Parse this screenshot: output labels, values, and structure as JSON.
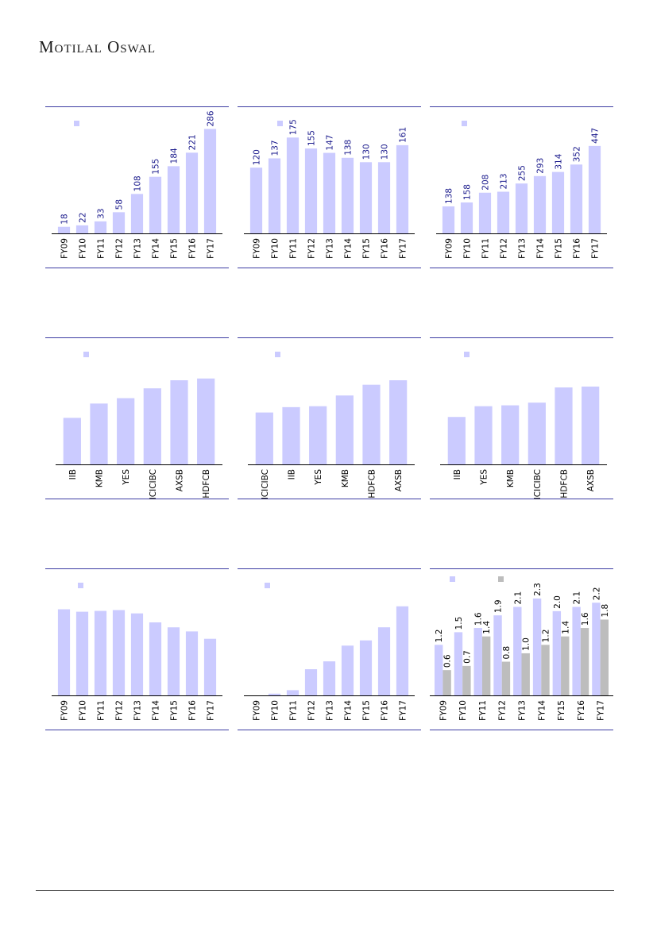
{
  "header": {
    "logo_text": "Motilal Oswal"
  },
  "colors": {
    "rule": "#3d3da3",
    "bar": "#cbcbff",
    "bar2": "#bdbdbd",
    "value_text": "#1a1a8c",
    "axis": "#000000"
  },
  "chart_data": [
    {
      "type": "bar",
      "categories": [
        "FY09",
        "FY10",
        "FY11",
        "FY12",
        "FY13",
        "FY14",
        "FY15",
        "FY16",
        "FY17"
      ],
      "series": [
        {
          "values": [
            18,
            22,
            33,
            58,
            108,
            155,
            184,
            221,
            286
          ]
        }
      ],
      "ylim": [
        0,
        300
      ],
      "show_labels": true,
      "legend_count": 1
    },
    {
      "type": "bar",
      "categories": [
        "FY09",
        "FY10",
        "FY11",
        "FY12",
        "FY13",
        "FY14",
        "FY15",
        "FY16",
        "FY17"
      ],
      "series": [
        {
          "values": [
            120,
            137,
            175,
            155,
            147,
            138,
            130,
            130,
            161
          ]
        }
      ],
      "ylim": [
        0,
        200
      ],
      "show_labels": true,
      "legend_count": 1
    },
    {
      "type": "bar",
      "categories": [
        "FY09",
        "FY10",
        "FY11",
        "FY12",
        "FY13",
        "FY14",
        "FY15",
        "FY16",
        "FY17"
      ],
      "series": [
        {
          "values": [
            138,
            158,
            208,
            213,
            255,
            293,
            314,
            352,
            447
          ]
        }
      ],
      "ylim": [
        0,
        560
      ],
      "show_labels": true,
      "legend_count": 1
    },
    {
      "type": "bar",
      "categories": [
        "IIB",
        "KMB",
        "YES",
        "ICICIBC",
        "AXSB",
        "HDFCB"
      ],
      "series": [
        {
          "values": [
            52,
            68,
            74,
            85,
            94,
            96
          ]
        }
      ],
      "ylim": [
        0,
        110
      ],
      "show_labels": false,
      "legend_count": 1
    },
    {
      "type": "bar",
      "categories": [
        "ICICIBC",
        "IIB",
        "YES",
        "KMB",
        "HDFCB",
        "AXSB"
      ],
      "series": [
        {
          "values": [
            58,
            64,
            65,
            77,
            89,
            94
          ]
        }
      ],
      "ylim": [
        0,
        110
      ],
      "show_labels": false,
      "legend_count": 1
    },
    {
      "type": "bar",
      "categories": [
        "IIB",
        "YES",
        "KMB",
        "ICICIBC",
        "HDFCB",
        "AXSB"
      ],
      "series": [
        {
          "values": [
            53,
            65,
            66,
            69,
            86,
            87
          ]
        }
      ],
      "ylim": [
        0,
        110
      ],
      "show_labels": false,
      "legend_count": 1
    },
    {
      "type": "bar",
      "categories": [
        "FY09",
        "FY10",
        "FY11",
        "FY12",
        "FY13",
        "FY14",
        "FY15",
        "FY16",
        "FY17"
      ],
      "series": [
        {
          "values": [
            105,
            102,
            103,
            104,
            100,
            89,
            83,
            78,
            69
          ]
        }
      ],
      "ylim": [
        0,
        120
      ],
      "show_labels": false,
      "legend_count": 1
    },
    {
      "type": "bar",
      "categories": [
        "FY09",
        "FY10",
        "FY11",
        "FY12",
        "FY13",
        "FY14",
        "FY15",
        "FY16",
        "FY17"
      ],
      "series": [
        {
          "values": [
            0,
            2,
            6,
            30,
            39,
            57,
            63,
            78,
            102
          ]
        }
      ],
      "ylim": [
        0,
        120
      ],
      "show_labels": false,
      "legend_count": 1
    },
    {
      "type": "bar",
      "categories": [
        "FY09",
        "FY10",
        "FY11",
        "FY12",
        "FY13",
        "FY14",
        "FY15",
        "FY16",
        "FY17"
      ],
      "series": [
        {
          "values": [
            "1.2",
            "1.5",
            "1.6",
            "1.9",
            "2.1",
            "2.3",
            "2.0",
            "2.1",
            "2.2"
          ]
        },
        {
          "values": [
            "0.6",
            "0.7",
            "1.4",
            "0.8",
            "1.0",
            "1.2",
            "1.4",
            "1.6",
            "1.8"
          ]
        }
      ],
      "ylim": [
        0,
        2.6
      ],
      "show_labels": true,
      "legend_count": 2
    }
  ]
}
